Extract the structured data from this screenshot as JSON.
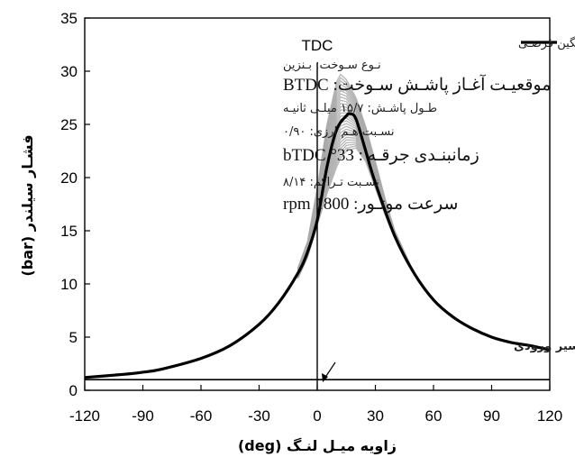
{
  "chart_data": {
    "type": "line",
    "xlabel": "زاویه میـل لنـگ (deg)",
    "ylabel": "فشـار سیلندر (bar)",
    "xlim": [
      -120,
      120
    ],
    "ylim": [
      0,
      35
    ],
    "xticks": [
      "-120",
      "-90",
      "-60",
      "-30",
      "0",
      "30",
      "60",
      "90",
      "120"
    ],
    "yticks": [
      "0",
      "5",
      "10",
      "15",
      "20",
      "25",
      "30",
      "35"
    ],
    "grid": false,
    "legend_position": "top-right",
    "colors": {
      "mean": "#000000",
      "cycles": "#a9a9a9",
      "baseline": "#000000"
    },
    "legend": {
      "mean": "سـیکل میـانگین فرضـی"
    },
    "tdc_label": "TDC",
    "tdc_x": 0,
    "intake_pressure": {
      "value": 1.0,
      "label": "فشـار مطلـق در مسیر ورودی"
    },
    "mean_cycle": {
      "x": [
        -120,
        -100,
        -90,
        -80,
        -60,
        -45,
        -30,
        -20,
        -10,
        -5,
        0,
        5,
        10,
        15,
        17,
        20,
        25,
        30,
        40,
        50,
        60,
        70,
        80,
        90,
        100,
        110,
        120
      ],
      "y": [
        1.2,
        1.5,
        1.7,
        2.0,
        3.0,
        4.2,
        6.2,
        8.2,
        11.0,
        13.0,
        16.0,
        21.0,
        24.5,
        25.8,
        26.0,
        25.5,
        22.5,
        19.5,
        14.5,
        11.0,
        8.5,
        6.9,
        5.8,
        5.0,
        4.5,
        4.2,
        3.8
      ]
    },
    "cycle_band": {
      "x": [
        -10,
        -5,
        0,
        5,
        10,
        12,
        15,
        20,
        25,
        30,
        35,
        40,
        50,
        60
      ],
      "upper": [
        11.5,
        14.0,
        19.0,
        25.0,
        29.0,
        29.7,
        29.2,
        27.5,
        24.8,
        21.5,
        18.0,
        15.0,
        11.0,
        8.5
      ],
      "lower": [
        10.5,
        12.5,
        15.5,
        18.5,
        21.0,
        21.8,
        22.5,
        22.8,
        21.5,
        19.0,
        16.5,
        14.3,
        10.9,
        8.5
      ]
    },
    "annotations": [
      "نـوع سـوخت: بـنزین",
      "موقعیـت آغـاز پاشـش سـوخت: BTDC",
      "طـول پاشـش: ۱۵/۷ میلـی ثانیـه",
      "نسـبت هـم ارزی: ۰/۹۰",
      "زمانبنـدی جرقـه : 33° bTDC",
      "نسـبت تـراکم: ۸/۱۴",
      "سرعت موتـور: 1800 rpm"
    ]
  }
}
